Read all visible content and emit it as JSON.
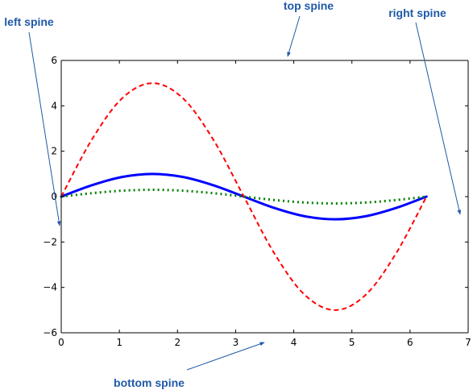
{
  "chart_data": {
    "type": "line",
    "xlim": [
      0,
      7
    ],
    "ylim": [
      -6,
      6
    ],
    "x_ticks": [
      0,
      1,
      2,
      3,
      4,
      5,
      6,
      7
    ],
    "y_ticks": [
      -6,
      -4,
      -2,
      0,
      2,
      4,
      6
    ],
    "x_tick_labels": [
      "0",
      "1",
      "2",
      "3",
      "4",
      "5",
      "6",
      "7"
    ],
    "y_tick_labels": [
      "−6",
      "−4",
      "−2",
      "0",
      "2",
      "4",
      "6"
    ],
    "grid": false,
    "series": [
      {
        "color": "#0000ff",
        "style": "solid",
        "x": [
          0,
          0.5236,
          1.0472,
          1.5708,
          2.0944,
          2.618,
          3.1416,
          3.6652,
          4.1888,
          4.7124,
          5.236,
          5.7596,
          6.2832
        ],
        "y": [
          0,
          0.5,
          0.866,
          1.0,
          0.866,
          0.5,
          0,
          -0.5,
          -0.866,
          -1.0,
          -0.866,
          -0.5,
          0
        ]
      },
      {
        "color": "#ff0000",
        "style": "dashed",
        "x": [
          0,
          0.5236,
          1.0472,
          1.5708,
          2.0944,
          2.618,
          3.1416,
          3.6652,
          4.1888,
          4.7124,
          5.236,
          5.7596,
          6.2832
        ],
        "y": [
          0,
          2.5,
          4.33,
          5.0,
          4.33,
          2.5,
          0,
          -2.5,
          -4.33,
          -5.0,
          -4.33,
          -2.5,
          0
        ]
      },
      {
        "color": "#008000",
        "style": "dotted",
        "x": [
          0,
          0.5236,
          1.0472,
          1.5708,
          2.0944,
          2.618,
          3.1416,
          3.6652,
          4.1888,
          4.7124,
          5.236,
          5.7596,
          6.2832
        ],
        "y": [
          0,
          0.15,
          0.26,
          0.3,
          0.26,
          0.15,
          0,
          -0.15,
          -0.26,
          -0.3,
          -0.26,
          -0.15,
          0
        ]
      }
    ],
    "annotations": [
      {
        "id": "top-spine",
        "text": "top spine"
      },
      {
        "id": "right-spine",
        "text": "right spine"
      },
      {
        "id": "left-spine",
        "text": "left spine"
      },
      {
        "id": "bottom-spine",
        "text": "bottom spine"
      }
    ],
    "annotation_color": "#1f5aa8"
  }
}
